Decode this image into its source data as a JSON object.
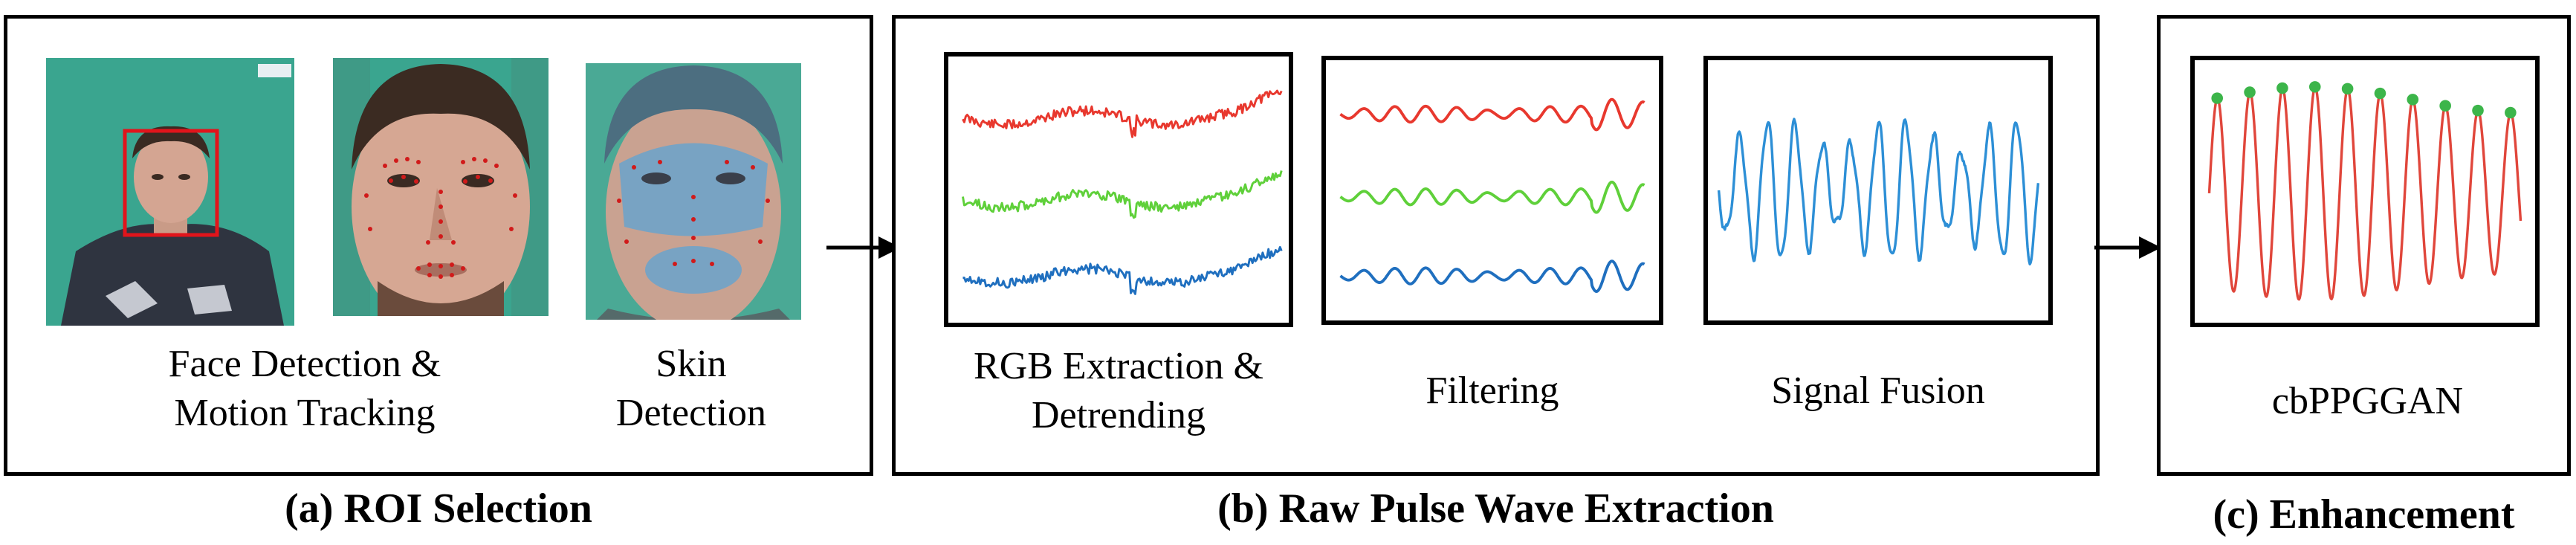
{
  "stage_a": {
    "title": "(a) ROI Selection",
    "caption_face_line1": "Face Detection &",
    "caption_face_line2": "Motion Tracking",
    "caption_skin_line1": "Skin",
    "caption_skin_line2": "Detection"
  },
  "stage_b": {
    "title": "(b) Raw Pulse Wave Extraction",
    "caption_rgb_line1": "RGB Extraction &",
    "caption_rgb_line2": "Detrending",
    "caption_filtering": "Filtering",
    "caption_fusion": "Signal Fusion"
  },
  "stage_c": {
    "title": "(c) Enhancement",
    "caption_model": "cbPPGGAN"
  },
  "colors": {
    "red": "#e8382e",
    "green": "#5fd03a",
    "blue": "#1f6fbf",
    "fusion_blue": "#2d8fd6",
    "peak_green": "#3cb54a",
    "enh_red": "#e0463b",
    "teal_bg": "#3aa58f",
    "skin_mask": "#6fa3c9"
  }
}
